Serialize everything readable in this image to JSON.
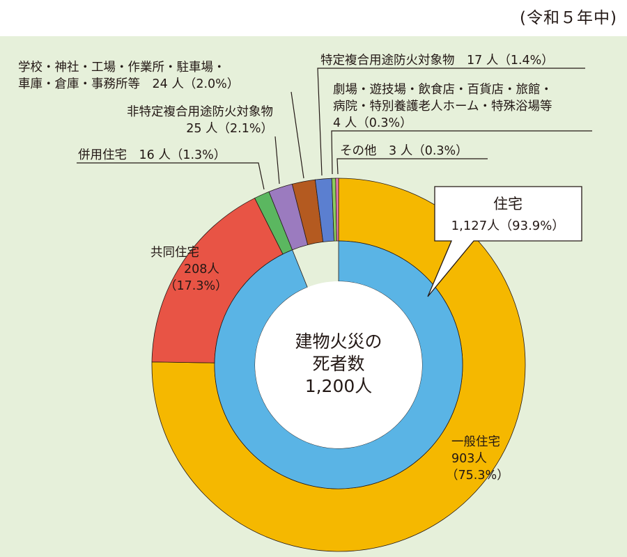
{
  "period": "(令和５年中)",
  "center": {
    "line1": "建物火災の",
    "line2": "死者数",
    "line3": "1,200人"
  },
  "callout": {
    "title": "住宅",
    "value": "1,127人（93.9%）"
  },
  "labels": {
    "general_housing": [
      "一般住宅",
      "903人",
      "（75.3%）"
    ],
    "collective_housing": [
      "共同住宅",
      "208人",
      "（17.3%）"
    ],
    "mixed_housing": "併用住宅　16 人（1.3%）",
    "non_specific": [
      "非特定複合用途防火対象物",
      "25 人（2.1%）"
    ],
    "school_etc": [
      "学校・神社・工場・作業所・駐車場・",
      "車庫・倉庫・事務所等　24 人（2.0%）"
    ],
    "specific": "特定複合用途防火対象物　17 人（1.4%）",
    "theater_etc": [
      "劇場・遊技場・飲食店・百貨店・旅館・",
      "病院・特別養護老人ホーム・特殊浴場等",
      "4 人（0.3%）"
    ],
    "other": "その他　3 人（0.3%）"
  },
  "chart_data": {
    "type": "pie",
    "total": 1200,
    "inner_ring": [
      {
        "name": "住宅",
        "value": 1127,
        "percent": 93.9,
        "color": "#5ab4e5"
      }
    ],
    "outer_ring": [
      {
        "name": "一般住宅",
        "value": 903,
        "percent": 75.3,
        "color": "#f5b800"
      },
      {
        "name": "共同住宅",
        "value": 208,
        "percent": 17.3,
        "color": "#e85445"
      },
      {
        "name": "併用住宅",
        "value": 16,
        "percent": 1.3,
        "color": "#5bb760"
      },
      {
        "name": "非特定複合用途防火対象物",
        "value": 25,
        "percent": 2.1,
        "color": "#9b7bbf"
      },
      {
        "name": "学校・神社・工場・作業所・駐車場・車庫・倉庫・事務所等",
        "value": 24,
        "percent": 2.0,
        "color": "#b45a20"
      },
      {
        "name": "特定複合用途防火対象物",
        "value": 17,
        "percent": 1.4,
        "color": "#5b7fd0"
      },
      {
        "name": "劇場・遊技場・飲食店・百貨店・旅館・病院・特別養護老人ホーム・特殊浴場等",
        "value": 4,
        "percent": 0.3,
        "color": "#8ccc5e"
      },
      {
        "name": "その他",
        "value": 3,
        "percent": 0.3,
        "color": "#e87bb0"
      }
    ]
  }
}
